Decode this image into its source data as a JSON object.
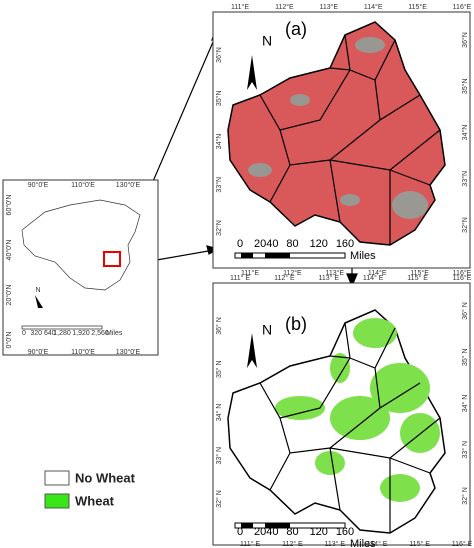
{
  "inset": {
    "top_labels": [
      "90°0'E",
      "110°0'E",
      "130°0'E"
    ],
    "bottom_labels": [
      "90°0'E",
      "110°0'E",
      "130°0'E"
    ],
    "left_labels": [
      "60°0'N",
      "40°0'N",
      "20°0'N",
      "0°0'N"
    ],
    "north": "N",
    "scale_labels": [
      "0",
      "320 640",
      "1,280",
      "1,920",
      "2,560"
    ],
    "scale_unit": "Miles"
  },
  "map_a": {
    "label": "(a)",
    "top_labels": [
      "111°E",
      "112°E",
      "113°E",
      "114°E",
      "115°E",
      "116°E"
    ],
    "bottom_labels": [
      "111°E",
      "112°E",
      "113°E",
      "114°E",
      "115°E",
      "116°E"
    ],
    "left_labels": [
      "36°N",
      "35°N",
      "34°N",
      "33°N",
      "32°N"
    ],
    "right_labels": [
      "36°N",
      "35°N",
      "34°N",
      "33°N",
      "32°N"
    ],
    "north": "N",
    "scale_labels": [
      "0",
      "2040",
      "80",
      "120",
      "160"
    ],
    "scale_unit": "Miles"
  },
  "map_b": {
    "label": "(b)",
    "top_labels": [
      "111° E",
      "112° E",
      "113° E",
      "114° E",
      "115° E",
      "116°E"
    ],
    "bottom_labels": [
      "111° E",
      "112° E",
      "113° E",
      "114° E",
      "115° E",
      "116° E"
    ],
    "left_labels": [
      "36° N",
      "35° N",
      "34° N",
      "33° N",
      "32° N"
    ],
    "right_labels": [
      "36° N",
      "35° N",
      "34° N",
      "33° N",
      "32° N"
    ],
    "north": "N",
    "scale_labels": [
      "0",
      "2040",
      "80",
      "120",
      "160"
    ],
    "scale_unit": "Miles"
  },
  "legend": {
    "items": [
      {
        "label": "No Wheat"
      },
      {
        "label": "Wheat"
      }
    ]
  }
}
